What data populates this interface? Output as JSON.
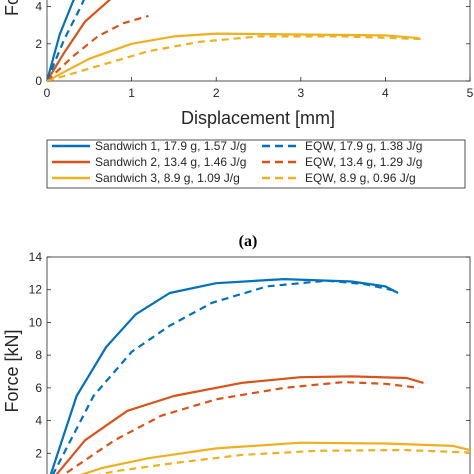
{
  "chart_data": [
    {
      "type": "line",
      "panel": "(a)",
      "ylabel": "Fo",
      "xlabel": "Displacement [mm]",
      "xlim": [
        0,
        5
      ],
      "ylim": [
        0,
        5
      ],
      "x_ticks": [
        "0",
        "1",
        "2",
        "3",
        "4",
        "5"
      ],
      "y_ticks": [
        "0",
        "2",
        "4"
      ],
      "series": [
        {
          "name": "Sandwich 1, 17.9 g, 1.57 J/g",
          "color": "#0072BD",
          "style": "solid",
          "points": [
            [
              0,
              0
            ],
            [
              0.15,
              2.5
            ],
            [
              0.3,
              4.2
            ],
            [
              0.38,
              5.0
            ]
          ]
        },
        {
          "name": "Sandwich 2, 13.4 g, 1.46 J/g",
          "color": "#D95319",
          "style": "solid",
          "points": [
            [
              0,
              0
            ],
            [
              0.2,
              1.5
            ],
            [
              0.45,
              3.2
            ],
            [
              0.75,
              4.4
            ],
            [
              1.05,
              5.0
            ]
          ]
        },
        {
          "name": "Sandwich 3, 8.9 g, 1.09 J/g",
          "color": "#EDB120",
          "style": "solid",
          "points": [
            [
              0,
              0
            ],
            [
              0.5,
              1.2
            ],
            [
              1.0,
              2.0
            ],
            [
              1.5,
              2.4
            ],
            [
              2.0,
              2.55
            ],
            [
              3.0,
              2.5
            ],
            [
              4.0,
              2.45
            ],
            [
              4.4,
              2.3
            ]
          ]
        },
        {
          "name": "EQW, 17.9 g, 1.38 J/g",
          "color": "#0072BD",
          "style": "dashed",
          "points": [
            [
              0,
              0
            ],
            [
              0.2,
              2.2
            ],
            [
              0.4,
              4.0
            ],
            [
              0.5,
              5.0
            ]
          ]
        },
        {
          "name": "EQW, 13.4 g, 1.29 J/g",
          "color": "#D95319",
          "style": "dashed",
          "points": [
            [
              0,
              0
            ],
            [
              0.3,
              1.3
            ],
            [
              0.6,
              2.4
            ],
            [
              0.9,
              3.1
            ],
            [
              1.2,
              3.5
            ]
          ]
        },
        {
          "name": "EQW, 8.9 g, 0.96 J/g",
          "color": "#EDB120",
          "style": "dashed",
          "points": [
            [
              0,
              0
            ],
            [
              0.6,
              0.8
            ],
            [
              1.2,
              1.6
            ],
            [
              1.8,
              2.1
            ],
            [
              2.5,
              2.4
            ],
            [
              3.5,
              2.4
            ],
            [
              4.45,
              2.25
            ]
          ]
        }
      ]
    },
    {
      "type": "line",
      "panel": "",
      "ylabel": "Force [kN]",
      "xlabel": "",
      "xlim": [
        0,
        5
      ],
      "ylim": [
        0,
        14
      ],
      "y_ticks": [
        "2",
        "4",
        "6",
        "8",
        "10",
        "12",
        "14"
      ],
      "series": [
        {
          "name": "Sandwich 1, 17.9 g, 1.57 J/g",
          "color": "#0072BD",
          "style": "solid",
          "points": [
            [
              0,
              0
            ],
            [
              0.35,
              5.5
            ],
            [
              0.7,
              8.5
            ],
            [
              1.05,
              10.5
            ],
            [
              1.45,
              11.8
            ],
            [
              2.0,
              12.4
            ],
            [
              2.8,
              12.65
            ],
            [
              3.6,
              12.5
            ],
            [
              4.0,
              12.2
            ],
            [
              4.15,
              11.8
            ]
          ]
        },
        {
          "name": "EQW, 17.9 g, 1.38 J/g",
          "color": "#0072BD",
          "style": "dashed",
          "points": [
            [
              0,
              0
            ],
            [
              0.55,
              5.5
            ],
            [
              1.0,
              8.2
            ],
            [
              1.45,
              9.8
            ],
            [
              1.95,
              11.2
            ],
            [
              2.6,
              12.2
            ],
            [
              3.3,
              12.55
            ],
            [
              3.75,
              12.35
            ],
            [
              4.15,
              11.9
            ]
          ]
        },
        {
          "name": "Sandwich 2, 13.4 g, 1.46 J/g",
          "color": "#D95319",
          "style": "solid",
          "points": [
            [
              0,
              0
            ],
            [
              0.45,
              2.8
            ],
            [
              0.95,
              4.6
            ],
            [
              1.5,
              5.5
            ],
            [
              2.3,
              6.3
            ],
            [
              3.0,
              6.65
            ],
            [
              3.6,
              6.7
            ],
            [
              4.25,
              6.6
            ],
            [
              4.45,
              6.3
            ]
          ]
        },
        {
          "name": "EQW, 13.4 g, 1.29 J/g",
          "color": "#D95319",
          "style": "dashed",
          "points": [
            [
              0,
              0
            ],
            [
              0.8,
              2.8
            ],
            [
              1.35,
              4.3
            ],
            [
              2.0,
              5.3
            ],
            [
              2.8,
              6.0
            ],
            [
              3.5,
              6.35
            ],
            [
              4.0,
              6.25
            ],
            [
              4.4,
              6.0
            ]
          ]
        },
        {
          "name": "Sandwich 3, 8.9 g, 1.09 J/g",
          "color": "#EDB120",
          "style": "solid",
          "points": [
            [
              0,
              0
            ],
            [
              0.65,
              1.1
            ],
            [
              1.2,
              1.7
            ],
            [
              2.0,
              2.3
            ],
            [
              3.0,
              2.65
            ],
            [
              4.0,
              2.6
            ],
            [
              4.8,
              2.45
            ],
            [
              5.0,
              2.2
            ]
          ]
        },
        {
          "name": "EQW, 8.9 g, 0.96 J/g",
          "color": "#EDB120",
          "style": "dashed",
          "points": [
            [
              0,
              0
            ],
            [
              0.8,
              0.9
            ],
            [
              1.5,
              1.4
            ],
            [
              2.3,
              1.9
            ],
            [
              3.2,
              2.15
            ],
            [
              4.2,
              2.2
            ],
            [
              5.0,
              2.05
            ]
          ]
        }
      ]
    }
  ],
  "legend": {
    "entries": [
      {
        "label": "Sandwich 1, 17.9 g, 1.57 J/g",
        "color": "#0072BD",
        "style": "solid"
      },
      {
        "label": "EQW, 17.9 g, 1.38 J/g",
        "color": "#0072BD",
        "style": "dashed"
      },
      {
        "label": "Sandwich 2, 13.4 g, 1.46 J/g",
        "color": "#D95319",
        "style": "solid"
      },
      {
        "label": "EQW, 13.4 g, 1.29 J/g",
        "color": "#D95319",
        "style": "dashed"
      },
      {
        "label": "Sandwich 3, 8.9 g, 1.09 J/g",
        "color": "#EDB120",
        "style": "solid"
      },
      {
        "label": "EQW, 8.9 g, 0.96 J/g",
        "color": "#EDB120",
        "style": "dashed"
      }
    ]
  }
}
